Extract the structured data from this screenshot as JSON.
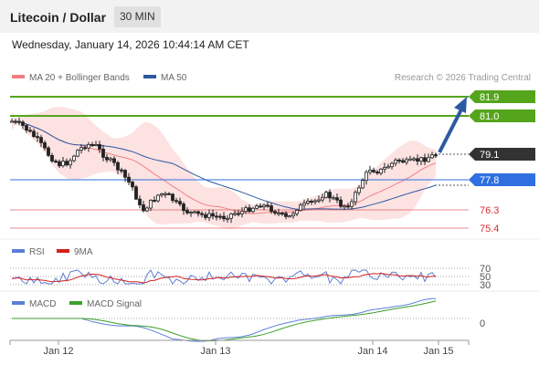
{
  "header": {
    "title": "Litecoin / Dollar",
    "interval": "30 MIN"
  },
  "datetime": "Wednesday, January 14, 2026 10:44:14 AM CET",
  "legend": {
    "ma20": "MA 20 + Bollinger Bands",
    "ma50": "MA 50",
    "rsi": "RSI",
    "rsi_ma": "9MA",
    "macd": "MACD",
    "macd_signal": "MACD Signal"
  },
  "copyright": "Research © 2026 Trading Central",
  "colors": {
    "resistance": "#55a51c",
    "support": "#2f6fe0",
    "current": "#333333",
    "minor_support": "#e05a5a",
    "ma20": "#f08080",
    "ma50": "#2c5aa0",
    "band": "#fde2e2",
    "rsi": "#5b7fd6",
    "rsi_ma": "#d42020",
    "macd": "#5b7fd6",
    "macd_signal": "#3aa02a",
    "arrow": "#2c5aa0"
  },
  "price_levels": [
    {
      "label": "81.9",
      "kind": "resistance"
    },
    {
      "label": "81.0",
      "kind": "resistance"
    },
    {
      "label": "79.1",
      "kind": "current"
    },
    {
      "label": "77.8",
      "kind": "support"
    },
    {
      "label": "76.3",
      "kind": "minor"
    },
    {
      "label": "75.4",
      "kind": "minor"
    }
  ],
  "rsi_levels": [
    "70",
    "50",
    "30"
  ],
  "macd_level": "0",
  "x_axis": [
    "Jan 12",
    "Jan 13",
    "Jan 14",
    "Jan 15"
  ]
}
